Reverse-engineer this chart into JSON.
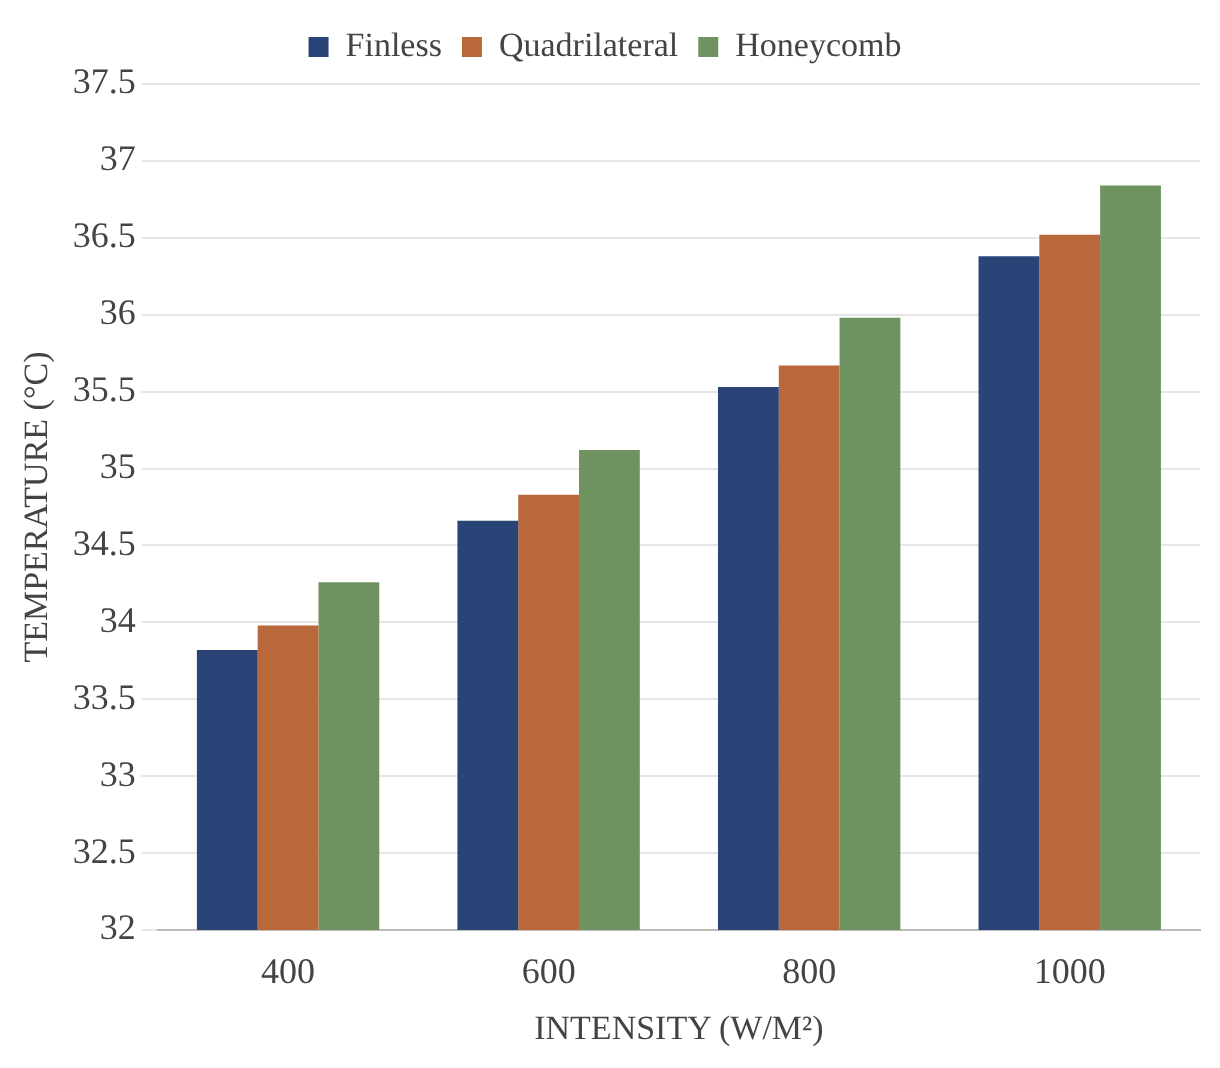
{
  "chart_data": {
    "type": "bar",
    "xlabel": "INTENSITY (W/M²)",
    "ylabel": "TEMPERATURE (°C)",
    "categories": [
      "400",
      "600",
      "800",
      "1000"
    ],
    "series": [
      {
        "name": "Finless",
        "color": "#2b4478",
        "values": [
          33.82,
          34.66,
          35.53,
          36.38
        ]
      },
      {
        "name": "Quadrilateral",
        "color": "#b8683a",
        "values": [
          33.98,
          34.83,
          35.67,
          36.52
        ]
      },
      {
        "name": "Honeycomb",
        "color": "#6e9360",
        "values": [
          34.26,
          35.12,
          35.98,
          36.84
        ]
      }
    ],
    "ylim": [
      32,
      37.5
    ],
    "yticks": [
      32,
      32.5,
      33,
      33.5,
      34,
      34.5,
      35,
      35.5,
      36,
      36.5,
      37,
      37.5
    ],
    "grid": "y",
    "legend": "top"
  }
}
